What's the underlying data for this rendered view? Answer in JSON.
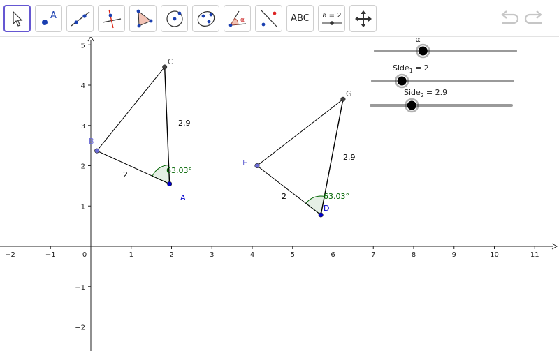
{
  "toolbar": {
    "tools": [
      {
        "icon": "move-arrow-icon",
        "selected": true
      },
      {
        "icon": "point-icon",
        "text": "A"
      },
      {
        "icon": "line-icon"
      },
      {
        "icon": "perpendicular-line-icon"
      },
      {
        "icon": "polygon-icon"
      },
      {
        "icon": "circle-center-point-icon"
      },
      {
        "icon": "ellipse-icon"
      },
      {
        "icon": "angle-icon",
        "text": "α"
      },
      {
        "icon": "reflect-icon"
      },
      {
        "icon": "text-tool-icon",
        "text": "ABC"
      },
      {
        "icon": "slider-tool-icon",
        "text": "a = 2"
      },
      {
        "icon": "move-graphics-view-icon"
      }
    ],
    "undo_icon": "undo-icon",
    "redo_icon": "redo-icon"
  },
  "axes": {
    "x_ticks": [
      "−2",
      "−1",
      "0",
      "1",
      "2",
      "3",
      "4",
      "5",
      "6",
      "7",
      "8",
      "9",
      "10",
      "11"
    ],
    "y_ticks": [
      "5",
      "4",
      "3",
      "2",
      "1",
      "−1",
      "−2"
    ]
  },
  "points": {
    "A": {
      "label": "A",
      "x": 1.95,
      "y": 1.55,
      "color": "#0000cc"
    },
    "B": {
      "label": "B",
      "x": 0.15,
      "y": 2.37,
      "color": "#6b6bd6"
    },
    "C": {
      "label": "C",
      "x": 1.83,
      "y": 4.45,
      "color": "#444444"
    },
    "D": {
      "label": "D",
      "x": 5.7,
      "y": 0.78,
      "color": "#0000cc"
    },
    "E": {
      "label": "E",
      "x": 4.12,
      "y": 2.0,
      "color": "#6b6bd6"
    },
    "G": {
      "label": "G",
      "x": 6.25,
      "y": 3.65,
      "color": "#444444"
    }
  },
  "segment_labels": {
    "AB": "2",
    "AC": "2.9",
    "DE": "2",
    "DG": "2.9"
  },
  "angles": {
    "A": "63.03°",
    "D": "63.03°",
    "color": "#006400"
  },
  "sliders": {
    "alpha": {
      "label": "α",
      "value_fraction": 0.34
    },
    "side1": {
      "name": "Side",
      "sub": "1",
      "value": "= 2",
      "value_fraction": 0.21
    },
    "side2": {
      "name": "Side",
      "sub": "2",
      "value": "= 2.9",
      "value_fraction": 0.29
    }
  }
}
